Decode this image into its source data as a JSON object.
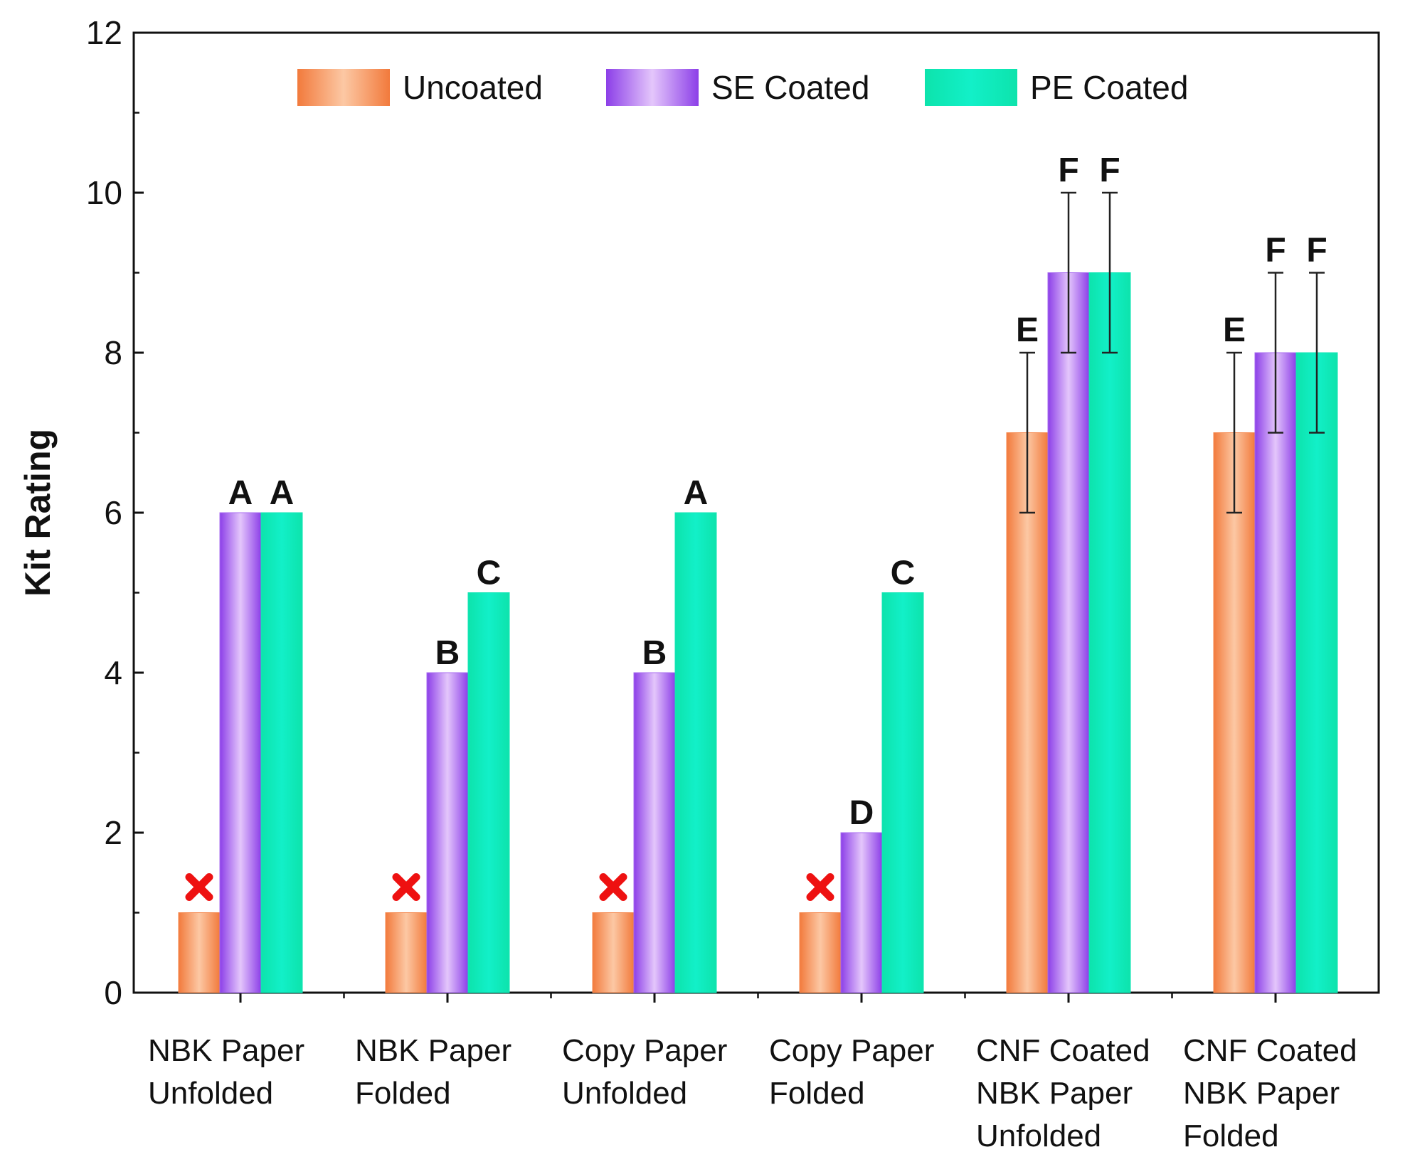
{
  "chart_data": {
    "type": "bar",
    "title": "",
    "xlabel": "",
    "ylabel": "Kit Rating",
    "ylim": [
      0,
      12
    ],
    "yticks": [
      0,
      2,
      4,
      6,
      8,
      10,
      12
    ],
    "grid": false,
    "legend_position": "top",
    "categories": [
      [
        "NBK Paper",
        "Unfolded"
      ],
      [
        "NBK Paper",
        "Folded"
      ],
      [
        "Copy Paper",
        "Unfolded"
      ],
      [
        "Copy Paper",
        "Folded"
      ],
      [
        "CNF Coated",
        "NBK Paper",
        "Unfolded"
      ],
      [
        "CNF Coated",
        "NBK Paper",
        "Folded"
      ]
    ],
    "series": [
      {
        "name": "Uncoated",
        "color": "#f5894f",
        "values": [
          1,
          1,
          1,
          1,
          7,
          7
        ],
        "errors": [
          null,
          null,
          null,
          null,
          1,
          1
        ],
        "labels": [
          "",
          "",
          "",
          "",
          "E",
          "E"
        ],
        "failed": [
          true,
          true,
          true,
          true,
          false,
          false
        ]
      },
      {
        "name": "SE Coated",
        "color": "#a86cf0",
        "values": [
          6,
          4,
          4,
          2,
          9,
          8
        ],
        "errors": [
          null,
          null,
          null,
          null,
          1,
          1
        ],
        "labels": [
          "A",
          "B",
          "B",
          "D",
          "F",
          "F"
        ],
        "failed": [
          false,
          false,
          false,
          false,
          false,
          false
        ]
      },
      {
        "name": "PE Coated",
        "color": "#12e6b6",
        "values": [
          6,
          5,
          6,
          5,
          9,
          8
        ],
        "errors": [
          null,
          null,
          null,
          null,
          1,
          1
        ],
        "labels": [
          "A",
          "C",
          "A",
          "C",
          "F",
          "F"
        ],
        "failed": [
          false,
          false,
          false,
          false,
          false,
          false
        ]
      }
    ],
    "fail_marker_color": "#ee1111"
  }
}
